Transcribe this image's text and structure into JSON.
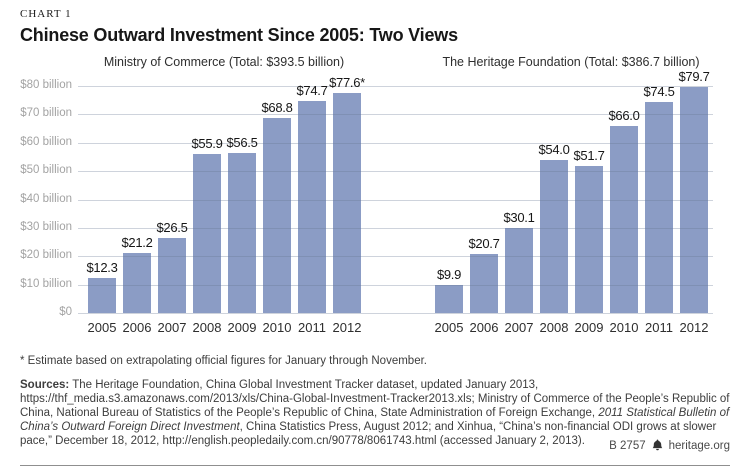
{
  "header": {
    "kicker": "CHART 1",
    "title": "Chinese Outward Investment Since 2005: Two Views"
  },
  "chart_data": {
    "type": "bar",
    "unit": "billions of U.S. dollars",
    "categories": [
      "2005",
      "2006",
      "2007",
      "2008",
      "2009",
      "2010",
      "2011",
      "2012"
    ],
    "panels": [
      {
        "title": "Ministry of Commerce (Total: $393.5 billion)",
        "values": [
          12.3,
          21.2,
          26.5,
          55.9,
          56.5,
          68.8,
          74.7,
          77.6
        ],
        "value_labels": [
          "$12.3",
          "$21.2",
          "$26.5",
          "$55.9",
          "$56.5",
          "$68.8",
          "$74.7",
          "$77.6*"
        ]
      },
      {
        "title": "The Heritage Foundation (Total: $386.7 billion)",
        "values": [
          9.9,
          20.7,
          30.1,
          54.0,
          51.7,
          66.0,
          74.5,
          79.7
        ],
        "value_labels": [
          "$9.9",
          "$20.7",
          "$30.1",
          "$54.0",
          "$51.7",
          "$66.0",
          "$74.5",
          "$79.7"
        ]
      }
    ],
    "ylim": [
      0,
      80
    ],
    "ytick_step": 10,
    "ytick_labels_top_to_bottom": [
      "$80 billion",
      "$70 billion",
      "$60 billion",
      "$50 billion",
      "$40 billion",
      "$30 billion",
      "$20 billion",
      "$10 billion",
      "$0"
    ],
    "grid": "horizontal",
    "legend": "none",
    "bar_color": "#8b9cc5"
  },
  "footnote": "* Estimate based on extrapolating official figures for January through November.",
  "sources": {
    "label": "Sources:",
    "part1": " The Heritage Foundation, China Global Investment Tracker dataset, updated January 2013, https://thf_media.s3.amazonaws.com/2013/xls/China-Global-Investment-Tracker2013.xls; Ministry of Commerce of the People’s Republic of China, National Bureau of Statistics of the People’s Republic of China, State Administration of Foreign Exchange, ",
    "italic": "2011 Statistical Bulletin of China’s Outward Foreign Direct Investment",
    "part2": ", China Statistics Press, August 2012; and Xinhua, “China’s non-financial ODI grows at slower pace,” December 18, 2012, http://english.peopledaily.com.cn/90778/8061743.html (accessed January 2, 2013)."
  },
  "footer": {
    "report_id": "B 2757",
    "site": "heritage.org",
    "logo": "heritage-bell-icon"
  }
}
